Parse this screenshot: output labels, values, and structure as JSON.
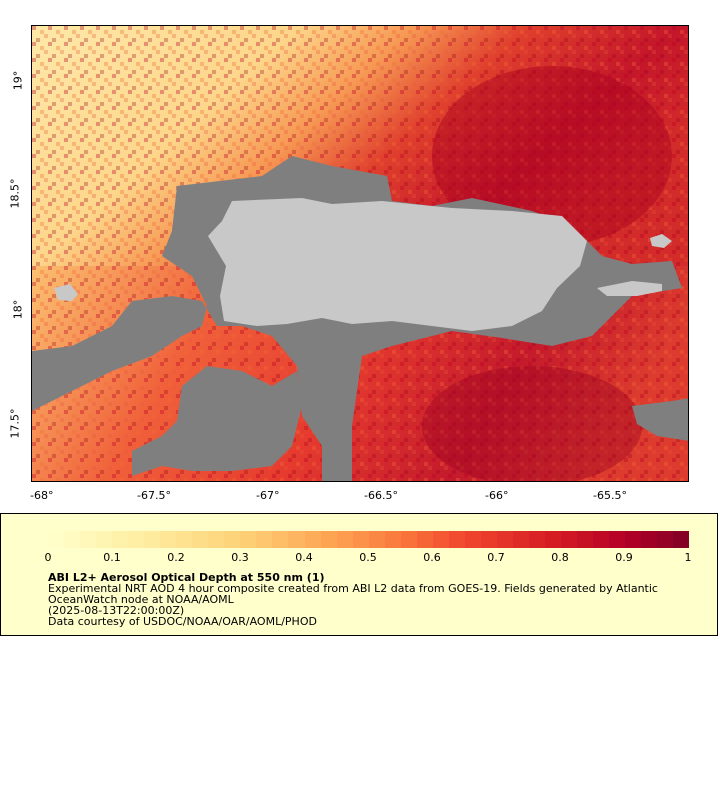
{
  "map": {
    "lon_ticks": [
      "-68°",
      "-67.5°",
      "-67°",
      "-66.5°",
      "-66°",
      "-65.5°"
    ],
    "lat_ticks": [
      "19°",
      "18.5°",
      "18°",
      "17.5°"
    ],
    "colors": {
      "land": "#c8c8c8",
      "nodata": "#7f7f7f"
    }
  },
  "legend": {
    "ticks": [
      "0",
      "0.1",
      "0.2",
      "0.3",
      "0.4",
      "0.5",
      "0.6",
      "0.7",
      "0.8",
      "0.9",
      "1"
    ],
    "title": "ABI L2+ Aerosol Optical Depth at 550 nm (1)",
    "description": "Experimental NRT AOD 4 hour composite created from ABI L2 data from GOES-19. Fields generated by Atlantic OceanWatch node at NOAA/AOML",
    "timestamp": "(2025-08-13T22:00:00Z)",
    "credit": "Data courtesy of USDOC/NOAA/OAR/AOML/PHOD",
    "scale": {
      "min": 0,
      "max": 1
    }
  }
}
